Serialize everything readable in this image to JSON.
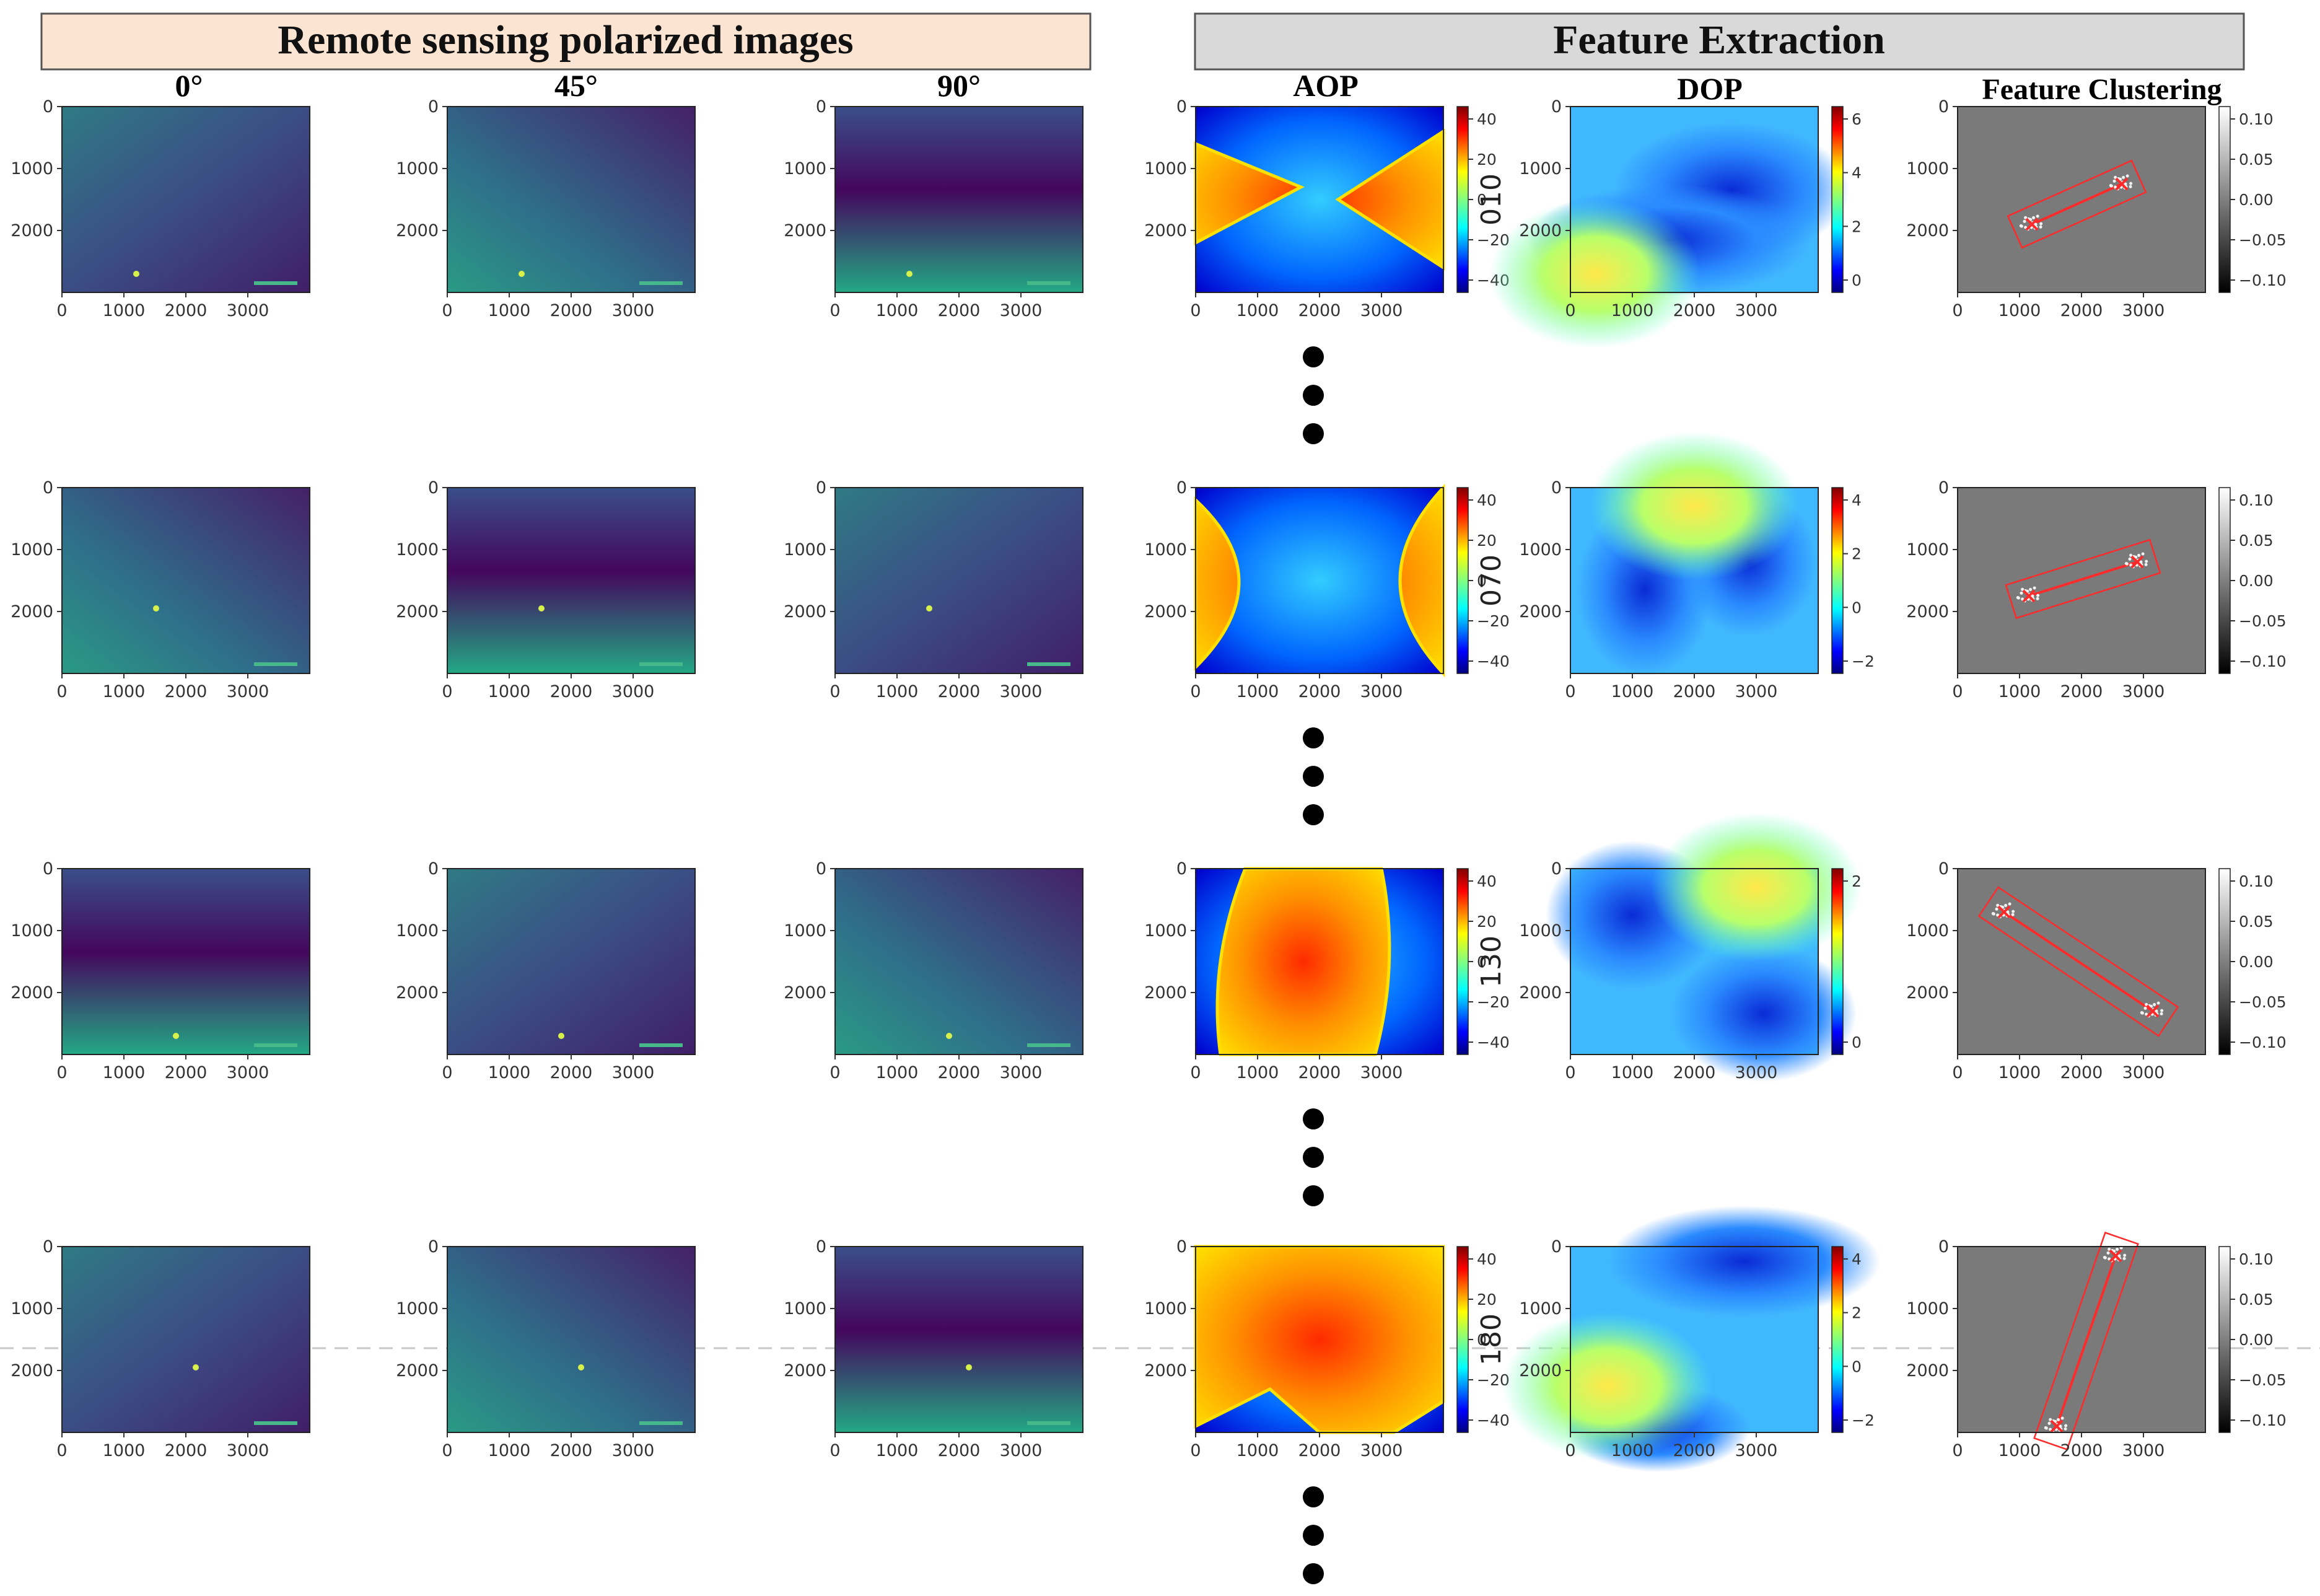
{
  "headers": {
    "left": "Remote sensing polarized images",
    "right": "Feature Extraction",
    "left_color": "#fce4d2",
    "right_color": "#d9d9d9"
  },
  "column_titles": [
    "0°",
    "45°",
    "90°",
    "AOP",
    "DOP",
    "Feature Clustering"
  ],
  "axis": {
    "x_ticks": [
      "0",
      "1000",
      "2000",
      "3000"
    ],
    "y_ticks": [
      "0",
      "1000",
      "2000"
    ]
  },
  "rows": [
    {
      "angle_label": "010",
      "aop_colorbar_ticks": [
        "40",
        "20",
        "0",
        "−20",
        "−40"
      ],
      "dop_colorbar_ticks": [
        "6",
        "4",
        "2",
        "0"
      ],
      "cluster_colorbar_ticks": [
        "0.10",
        "0.05",
        "0.00",
        "−0.05",
        "−0.10"
      ],
      "cluster_points": [
        [
          1200,
          1900
        ],
        [
          2650,
          1250
        ]
      ]
    },
    {
      "angle_label": "070",
      "aop_colorbar_ticks": [
        "40",
        "20",
        "0",
        "−20",
        "−40"
      ],
      "dop_colorbar_ticks": [
        "4",
        "2",
        "0",
        "−2"
      ],
      "cluster_colorbar_ticks": [
        "0.10",
        "0.05",
        "0.00",
        "−0.05",
        "−0.10"
      ],
      "cluster_points": [
        [
          1150,
          1750
        ],
        [
          2900,
          1200
        ]
      ]
    },
    {
      "angle_label": "130",
      "aop_colorbar_ticks": [
        "40",
        "20",
        "0",
        "−20",
        "−40"
      ],
      "dop_colorbar_ticks": [
        "2",
        "0"
      ],
      "cluster_colorbar_ticks": [
        "0.10",
        "0.05",
        "0.00",
        "−0.05",
        "−0.10"
      ],
      "cluster_points": [
        [
          750,
          700
        ],
        [
          3150,
          2300
        ]
      ]
    },
    {
      "angle_label": "180",
      "aop_colorbar_ticks": [
        "40",
        "20",
        "0",
        "−20",
        "−40"
      ],
      "dop_colorbar_ticks": [
        "4",
        "2",
        "0",
        "−2"
      ],
      "cluster_colorbar_ticks": [
        "0.10",
        "0.05",
        "0.00",
        "−0.05",
        "−0.10"
      ],
      "cluster_points": [
        [
          2550,
          150
        ],
        [
          1600,
          2900
        ]
      ]
    }
  ],
  "colors": {
    "viridis_dark": "#3e1f66",
    "viridis_mid": "#2a8787",
    "cluster_bg": "#7a7a7a",
    "cluster_marker": "#ff2a2a",
    "dot": "#000000"
  }
}
